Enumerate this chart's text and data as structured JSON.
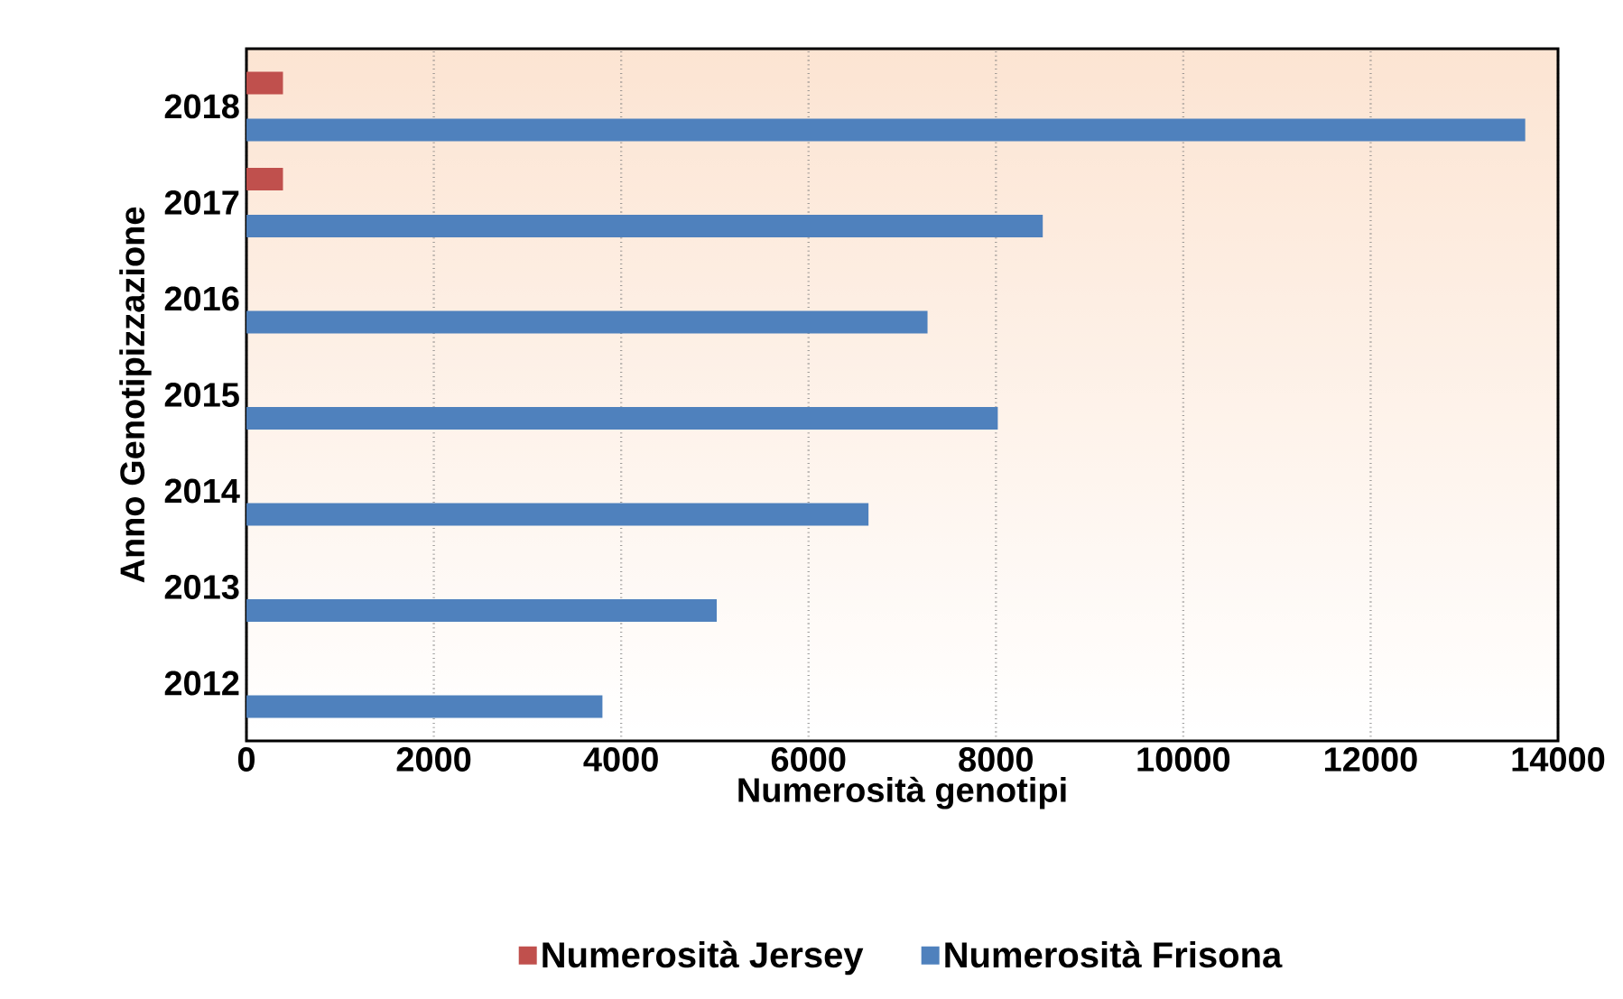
{
  "chart_data": {
    "type": "bar",
    "orientation": "horizontal",
    "xlabel": "Numerosità genotipi",
    "ylabel": "Anno Genotipizzazione",
    "categories": [
      "2018",
      "2017",
      "2016",
      "2015",
      "2014",
      "2013",
      "2012"
    ],
    "series": [
      {
        "name": "Numerosità Jersey",
        "color": "#c0504d",
        "values": [
          390,
          390,
          null,
          null,
          null,
          null,
          null
        ]
      },
      {
        "name": "Numerosità Frisona",
        "color": "#4f81bd",
        "values": [
          13650,
          8500,
          7270,
          8020,
          6640,
          5020,
          3800
        ]
      }
    ],
    "xlim": [
      0,
      14000
    ],
    "xticks": [
      0,
      2000,
      4000,
      6000,
      8000,
      10000,
      12000,
      14000
    ],
    "grid": "x",
    "legend": "bottom"
  }
}
